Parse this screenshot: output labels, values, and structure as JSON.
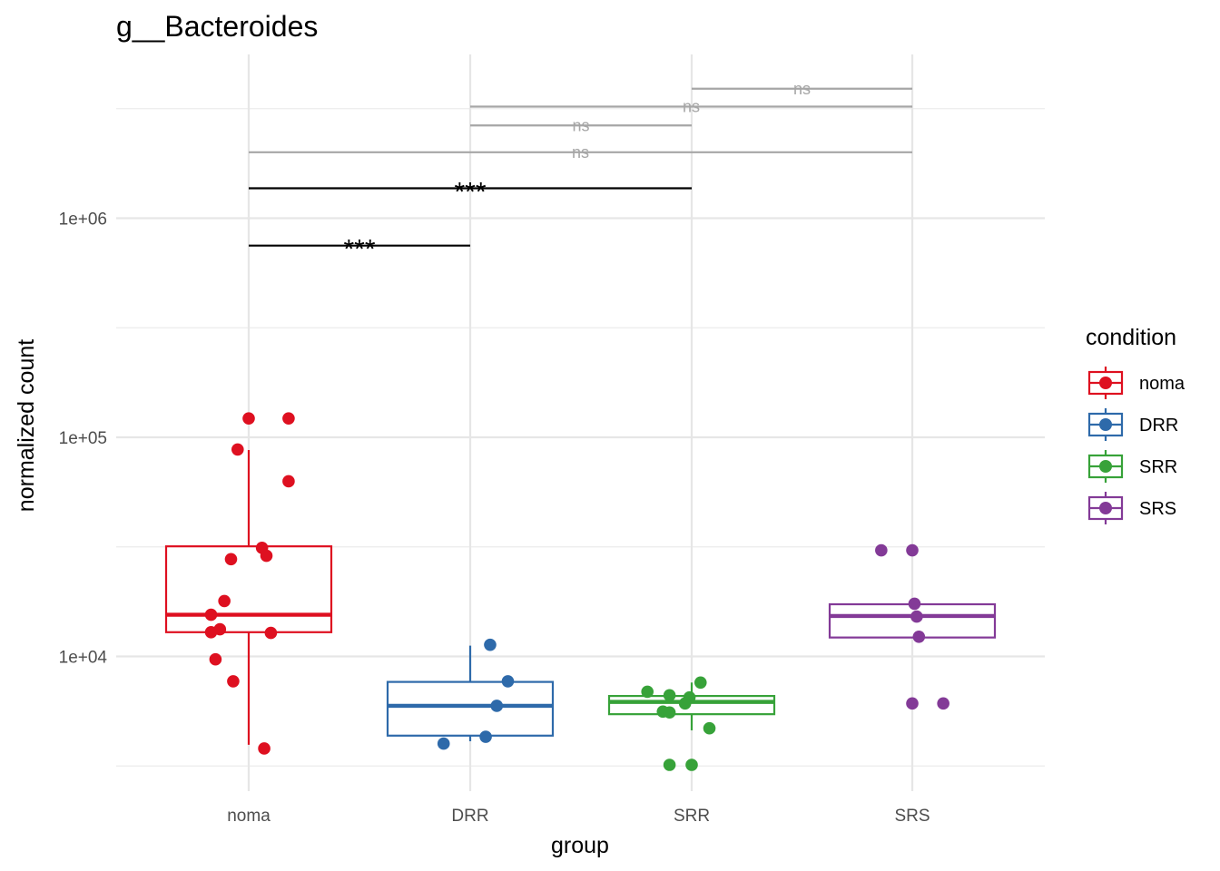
{
  "chart_data": {
    "type": "box",
    "title": "g__Bacteroides",
    "xlabel": "group",
    "ylabel": "normalized count",
    "y_scale": "log10",
    "ylim": [
      2900,
      4500000
    ],
    "y_ticks": [
      {
        "value": 10000,
        "label": "1e+04"
      },
      {
        "value": 100000,
        "label": "1e+05"
      },
      {
        "value": 1000000,
        "label": "1e+06"
      }
    ],
    "categories": [
      "noma",
      "DRR",
      "SRR",
      "SRS"
    ],
    "grid": true,
    "legend": {
      "title": "condition",
      "position": "right",
      "entries": [
        "noma",
        "DRR",
        "SRR",
        "SRS"
      ]
    },
    "series": [
      {
        "name": "noma",
        "color": "#de1020",
        "box": {
          "whisker_low": 3950,
          "q1": 12900,
          "median": 15500,
          "q3": 31800,
          "whisker_high": 87500
        },
        "points": [
          {
            "x": 0.0,
            "y": 122000
          },
          {
            "x": 0.18,
            "y": 122000
          },
          {
            "x": -0.05,
            "y": 88000
          },
          {
            "x": 0.18,
            "y": 63000
          },
          {
            "x": 0.06,
            "y": 31300
          },
          {
            "x": 0.08,
            "y": 28800
          },
          {
            "x": -0.08,
            "y": 27800
          },
          {
            "x": -0.11,
            "y": 17900
          },
          {
            "x": -0.17,
            "y": 15500
          },
          {
            "x": -0.13,
            "y": 13300
          },
          {
            "x": -0.17,
            "y": 12900
          },
          {
            "x": 0.1,
            "y": 12800
          },
          {
            "x": -0.15,
            "y": 9700
          },
          {
            "x": -0.07,
            "y": 7700
          },
          {
            "x": 0.07,
            "y": 3800
          }
        ]
      },
      {
        "name": "DRR",
        "color": "#2e6aaa",
        "box": {
          "whisker_low": 4100,
          "q1": 4350,
          "median": 5950,
          "q3": 7650,
          "whisker_high": 11200
        },
        "points": [
          {
            "x": 0.09,
            "y": 11300
          },
          {
            "x": 0.17,
            "y": 7700
          },
          {
            "x": 0.12,
            "y": 5950
          },
          {
            "x": 0.07,
            "y": 4300
          },
          {
            "x": -0.12,
            "y": 4000
          }
        ]
      },
      {
        "name": "SRR",
        "color": "#37a239",
        "box": {
          "whisker_low": 4600,
          "q1": 5450,
          "median": 6200,
          "q3": 6600,
          "whisker_high": 7600
        },
        "points": [
          {
            "x": 0.04,
            "y": 7600
          },
          {
            "x": -0.2,
            "y": 6900
          },
          {
            "x": -0.1,
            "y": 6650
          },
          {
            "x": -0.01,
            "y": 6500
          },
          {
            "x": -0.03,
            "y": 6100
          },
          {
            "x": -0.13,
            "y": 5600
          },
          {
            "x": -0.1,
            "y": 5550
          },
          {
            "x": 0.08,
            "y": 4700
          },
          {
            "x": -0.1,
            "y": 3200
          },
          {
            "x": 0.0,
            "y": 3200
          }
        ]
      },
      {
        "name": "SRS",
        "color": "#833a97",
        "box": {
          "whisker_low": 12200,
          "q1": 12200,
          "median": 15300,
          "q3": 17300,
          "whisker_high": 17300
        },
        "points": [
          {
            "x": -0.14,
            "y": 30500
          },
          {
            "x": 0.0,
            "y": 30500
          },
          {
            "x": 0.01,
            "y": 17400
          },
          {
            "x": 0.02,
            "y": 15200
          },
          {
            "x": 0.03,
            "y": 12300
          },
          {
            "x": 0.0,
            "y": 6100
          },
          {
            "x": 0.14,
            "y": 6100
          }
        ]
      }
    ],
    "comparisons": [
      {
        "group1": "noma",
        "group2": "DRR",
        "label": "***",
        "y": 750000,
        "significant": true
      },
      {
        "group1": "noma",
        "group2": "SRR",
        "label": "***",
        "y": 1370000,
        "significant": true
      },
      {
        "group1": "noma",
        "group2": "SRS",
        "label": "ns",
        "y": 2000000,
        "significant": false
      },
      {
        "group1": "DRR",
        "group2": "SRR",
        "label": "ns",
        "y": 2650000,
        "significant": false
      },
      {
        "group1": "DRR",
        "group2": "SRS",
        "label": "ns",
        "y": 3230000,
        "significant": false
      },
      {
        "group1": "SRR",
        "group2": "SRS",
        "label": "ns",
        "y": 3900000,
        "significant": false
      }
    ]
  }
}
